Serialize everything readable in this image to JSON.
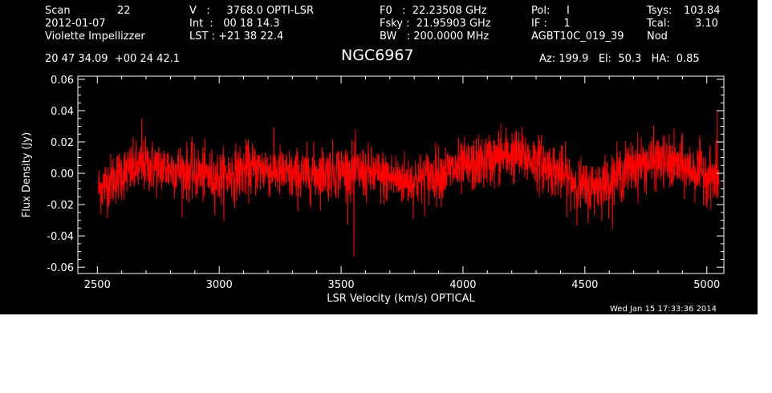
{
  "header": {
    "scan_label": "Scan",
    "scan_value": "22",
    "date": "2012-01-07",
    "observer": "Violette Impellizzer",
    "coords": "20 47 34.09  +00 24 42.1",
    "velocity": "V   :     3768.0 OPTI-LSR",
    "int_time": "Int  :   00 18 14.3",
    "lst": "LST : +21 38 22.4",
    "f0": "F0   :  22.23508 GHz",
    "fsky": "Fsky :  21.95903 GHz",
    "bw": "BW   : 200.0000 MHz",
    "pol": "Pol:     I",
    "if": "IF :     1",
    "project": "AGBT10C_019_39",
    "tsys_label": "Tsys:",
    "tsys_value": "103.84",
    "tcal_label": "Tcal:",
    "tcal_value": "3.10",
    "mode": "Nod",
    "source": "NGC6967",
    "az_el_ha": "Az: 199.9   El:  50.3   HA:  0.85",
    "timestamp": "Wed Jan 15 17:33:36 2014"
  },
  "colors": {
    "background": "#000000",
    "foreground": "#ffffff",
    "series": "#ff0000"
  },
  "chart_data": {
    "type": "line",
    "xlabel": "LSR Velocity (km/s) OPTICAL",
    "ylabel": "Flux Density (Jy)",
    "xlim": [
      2420,
      5070
    ],
    "ylim": [
      -0.064,
      0.062
    ],
    "xticks": [
      2500,
      3000,
      3500,
      4000,
      4500,
      5000
    ],
    "xtick_labels": [
      "2500",
      "3000",
      "3500",
      "4000",
      "4500",
      "5000"
    ],
    "yticks": [
      -0.06,
      -0.04,
      -0.02,
      0.0,
      0.02,
      0.04,
      0.06
    ],
    "ytick_labels": [
      "-0.06",
      "-0.04",
      "-0.02",
      "0.00",
      "0.02",
      "0.04",
      "0.06"
    ],
    "grid": false,
    "x_range_data": [
      2505,
      5050
    ],
    "baseline": {
      "x": [
        2505,
        2600,
        2700,
        2800,
        2900,
        3000,
        3100,
        3200,
        3300,
        3400,
        3500,
        3600,
        3700,
        3800,
        3900,
        4000,
        4100,
        4200,
        4300,
        4400,
        4500,
        4600,
        4700,
        4800,
        4900,
        5000,
        5050
      ],
      "y": [
        -0.01,
        0.0,
        0.005,
        0.003,
        0.0,
        -0.003,
        0.002,
        0.003,
        -0.002,
        0.0,
        0.002,
        0.0,
        -0.003,
        -0.005,
        0.0,
        0.003,
        0.008,
        0.012,
        0.008,
        0.0,
        -0.01,
        -0.005,
        0.005,
        0.008,
        0.004,
        0.0,
        -0.005
      ]
    },
    "noise_rms": 0.0085,
    "features": [
      {
        "x": 3552,
        "y": -0.053
      },
      {
        "x": 5043,
        "y": 0.04
      },
      {
        "x": 4155,
        "y": 0.032
      },
      {
        "x": 2682,
        "y": 0.035
      }
    ]
  }
}
